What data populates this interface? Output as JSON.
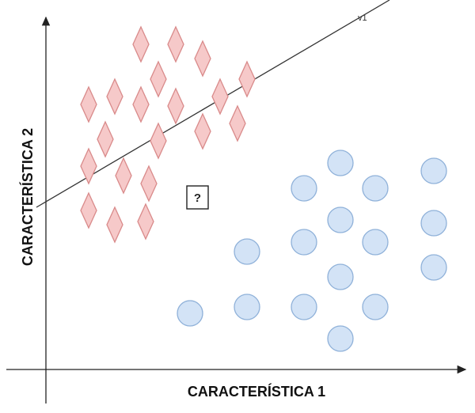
{
  "x_axis_label": "CARACTERÍSTICA 1",
  "y_axis_label": "CARACTERÍSTICA 2",
  "line_label": "v1",
  "unknown_marker": "?",
  "class_a": {
    "shape": "diamond",
    "fill": "#f6c9c9",
    "stroke": "#d98a8a"
  },
  "class_b": {
    "shape": "circle",
    "fill": "#d3e3f6",
    "stroke": "#8fb1d9"
  },
  "line_color": "#333333",
  "axis_color": "#222222"
}
